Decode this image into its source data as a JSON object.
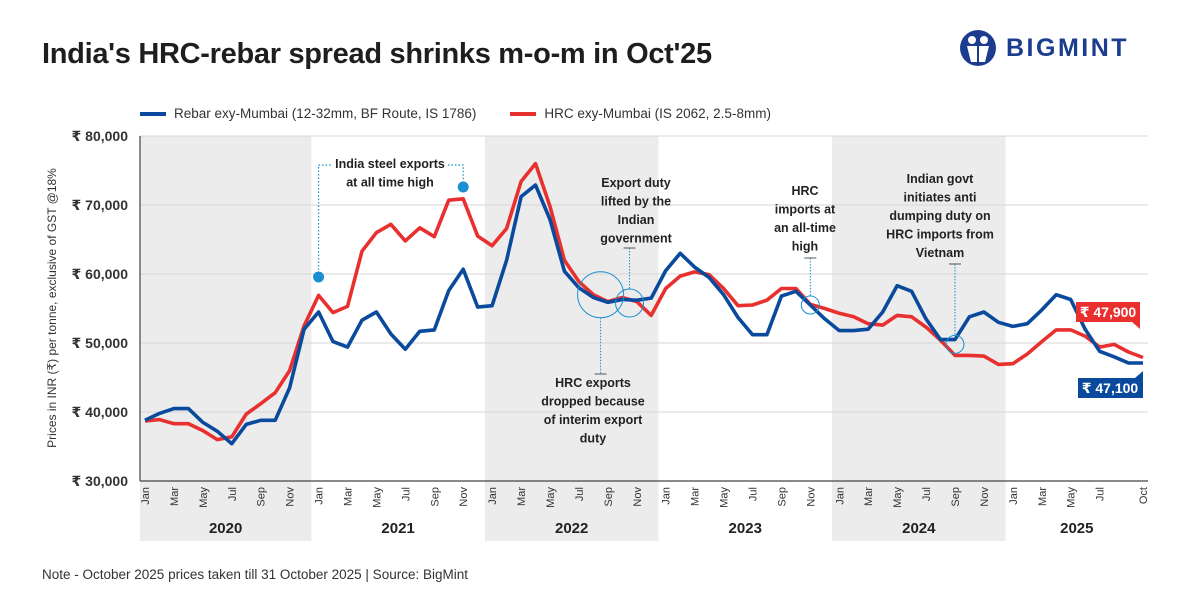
{
  "title": "India's HRC-rebar spread shrinks m-o-m in Oct'25",
  "logo": {
    "text": "BIGMINT",
    "color": "#1c3d8f"
  },
  "note": "Note - October 2025 prices taken till  31 October 2025  |  Source: BigMint",
  "chart_data": {
    "type": "line",
    "title": "India's HRC-rebar spread shrinks m-o-m in Oct'25",
    "ylabel": "Prices in INR (₹) per tonne, exclusive of GST @18%",
    "xlabel": "",
    "ylim": [
      30000,
      80000
    ],
    "y_ticks": [
      {
        "value": 30000,
        "label": "₹ 30,000"
      },
      {
        "value": 40000,
        "label": "₹ 40,000"
      },
      {
        "value": 50000,
        "label": "₹ 50,000"
      },
      {
        "value": 60000,
        "label": "₹ 60,000"
      },
      {
        "value": 70000,
        "label": "₹ 70,000"
      },
      {
        "value": 80000,
        "label": "₹ 80,000"
      }
    ],
    "grid": true,
    "legend": "top-left",
    "x_start": "Jan 2020",
    "x_end": "Oct 2025",
    "years": [
      "2020",
      "2021",
      "2022",
      "2023",
      "2024",
      "2025"
    ],
    "x_ticks": [
      {
        "month": 0,
        "label": "Jan"
      },
      {
        "month": 2,
        "label": "Mar"
      },
      {
        "month": 4,
        "label": "May"
      },
      {
        "month": 6,
        "label": "Jul"
      },
      {
        "month": 8,
        "label": "Sep"
      },
      {
        "month": 10,
        "label": "Nov"
      },
      {
        "month": 12,
        "label": "Jan"
      },
      {
        "month": 14,
        "label": "Mar"
      },
      {
        "month": 16,
        "label": "May"
      },
      {
        "month": 18,
        "label": "Jul"
      },
      {
        "month": 20,
        "label": "Sep"
      },
      {
        "month": 22,
        "label": "Nov"
      },
      {
        "month": 24,
        "label": "Jan"
      },
      {
        "month": 26,
        "label": "Mar"
      },
      {
        "month": 28,
        "label": "May"
      },
      {
        "month": 30,
        "label": "Jul"
      },
      {
        "month": 32,
        "label": "Sep"
      },
      {
        "month": 34,
        "label": "Nov"
      },
      {
        "month": 36,
        "label": "Jan"
      },
      {
        "month": 38,
        "label": "Mar"
      },
      {
        "month": 40,
        "label": "May"
      },
      {
        "month": 42,
        "label": "Jul"
      },
      {
        "month": 44,
        "label": "Sep"
      },
      {
        "month": 46,
        "label": "Nov"
      },
      {
        "month": 48,
        "label": "Jan"
      },
      {
        "month": 50,
        "label": "Mar"
      },
      {
        "month": 52,
        "label": "May"
      },
      {
        "month": 54,
        "label": "Jul"
      },
      {
        "month": 56,
        "label": "Sep"
      },
      {
        "month": 58,
        "label": "Nov"
      },
      {
        "month": 60,
        "label": "Jan"
      },
      {
        "month": 62,
        "label": "Mar"
      },
      {
        "month": 64,
        "label": "May"
      },
      {
        "month": 66,
        "label": "Jul"
      },
      {
        "month": 69,
        "label": "Oct"
      }
    ],
    "series": [
      {
        "name": "Rebar exy-Mumbai (12-32mm, BF Route, IS 1786)",
        "color": "#0a4a9c",
        "values": [
          38800,
          39800,
          40500,
          40500,
          38500,
          37200,
          35400,
          38200,
          38800,
          38800,
          43500,
          52000,
          54500,
          50200,
          49400,
          53300,
          54500,
          51300,
          49100,
          51700,
          51900,
          57600,
          60700,
          55200,
          55400,
          62000,
          71200,
          72900,
          67900,
          60400,
          58000,
          56600,
          55900,
          56300,
          56200,
          56500,
          60500,
          63000,
          61000,
          59500,
          57000,
          53700,
          51200,
          51200,
          56800,
          57500,
          55500,
          53500,
          51800,
          51800,
          52000,
          54500,
          58300,
          57500,
          53500,
          50500,
          50500,
          53800,
          54500,
          53000,
          52400,
          52800,
          54800,
          57000,
          56300,
          52000,
          48800,
          48000,
          47100,
          47100
        ],
        "end_label": "₹ 47,100"
      },
      {
        "name": "HRC exy-Mumbai (IS 2062, 2.5-8mm)",
        "color": "#e8312f",
        "values": [
          38700,
          38900,
          38300,
          38300,
          37300,
          36000,
          36400,
          39700,
          41200,
          42800,
          46000,
          52500,
          56900,
          54400,
          55300,
          63300,
          66000,
          67200,
          64800,
          66700,
          65400,
          70700,
          70900,
          65500,
          64100,
          66600,
          73400,
          76000,
          69800,
          62000,
          58900,
          57000,
          56000,
          56600,
          56000,
          54000,
          57900,
          59700,
          60300,
          59900,
          57900,
          55400,
          55500,
          56200,
          57900,
          57900,
          55600,
          55000,
          54300,
          53800,
          52800,
          52600,
          54000,
          53800,
          52300,
          50400,
          48200,
          48200,
          48100,
          46900,
          47000,
          48400,
          50200,
          51900,
          51900,
          51000,
          49400,
          49800,
          48700,
          47900
        ],
        "end_label": "₹ 47,900"
      }
    ],
    "annotations": [
      {
        "lines": [
          "India steel exports",
          "at all time high"
        ],
        "points": [
          12,
          22
        ],
        "kind": "dots"
      },
      {
        "lines": [
          "Export duty",
          "lifted by the",
          "Indian",
          "government"
        ],
        "month": 33.5,
        "value": 55800,
        "kind": "circle-above"
      },
      {
        "lines": [
          "HRC exports",
          "dropped because",
          "of interim export",
          "duty"
        ],
        "month": 31.5,
        "value": 57000,
        "kind": "big-circle-below"
      },
      {
        "lines": [
          "HRC",
          "imports at",
          "an all-time",
          "high"
        ],
        "month": 46,
        "value": 55500,
        "kind": "circle-above"
      },
      {
        "lines": [
          "Indian govt",
          "initiates anti",
          "dumping duty on",
          "HRC imports from",
          "Vietnam"
        ],
        "month": 56,
        "value": 49800,
        "kind": "circle-above"
      }
    ],
    "annotation_color": "#1a8fd1",
    "band_color": "#ececec"
  }
}
